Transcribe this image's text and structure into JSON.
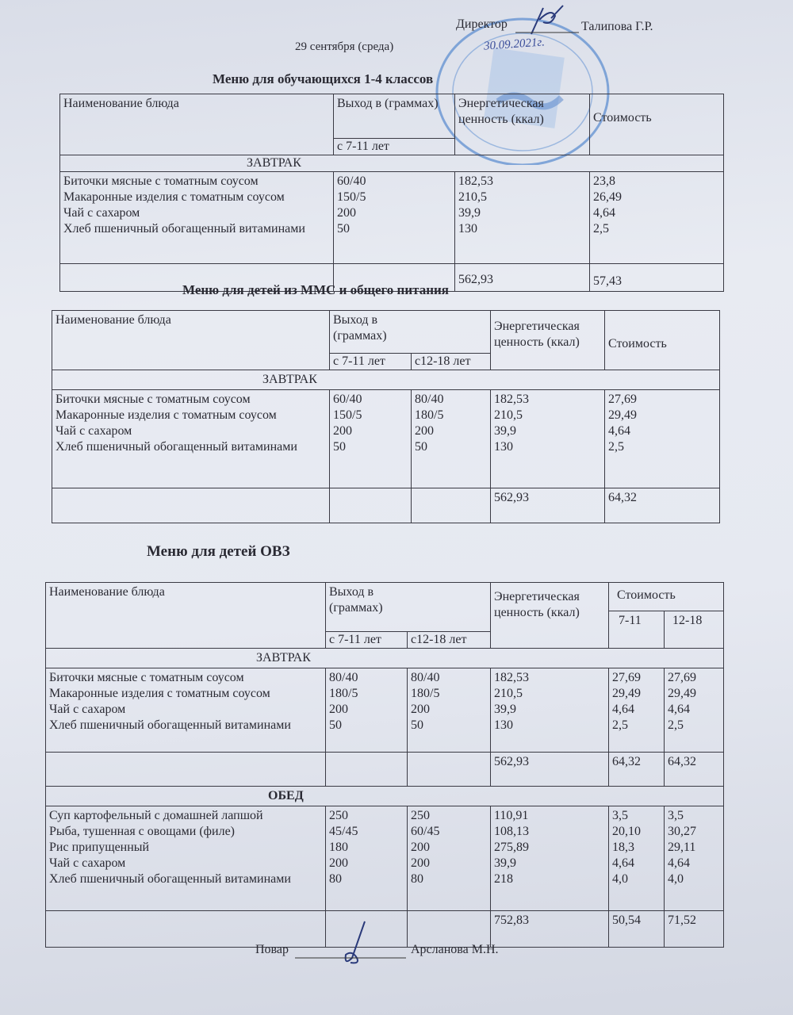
{
  "header": {
    "director_label": "Директор",
    "director_name": "Талипова Г.Р.",
    "stamp_date": "30.09.2021г.",
    "date": "29 сентября (среда)"
  },
  "table1": {
    "title": "Меню для обучающихся  1-4 классов",
    "col_name": "Наименование  блюда",
    "col_yield": "Выход в (граммах)",
    "col_yield_sub": "с 7-11 лет",
    "col_energy": "Энергетическая ценность (ккал)",
    "col_cost": "Стоимость",
    "section": "ЗАВТРАК",
    "names": [
      "Биточки мясные с томатным соусом",
      "Макаронные изделия с томатным соусом",
      "Чай с сахаром",
      "Хлеб пшеничный обогащенный витаминами"
    ],
    "yield": [
      "60/40",
      "150/5",
      "200",
      "50"
    ],
    "energy": [
      "182,53",
      "210,5",
      "39,9",
      "130"
    ],
    "cost": [
      "23,8",
      "26,49",
      "4,64",
      "2,5"
    ],
    "total_energy": "562,93",
    "total_cost": "57,43"
  },
  "table2": {
    "title": "Меню для детей из ММС и общего питания",
    "col_name": "Наименование  блюда",
    "col_yield": "Выход в (граммах)",
    "col_yield_sub1": "с 7-11 лет",
    "col_yield_sub2": "с12-18 лет",
    "col_energy": "Энергетическая ценность (ккал)",
    "col_cost": "Стоимость",
    "section": "ЗАВТРАК",
    "names": [
      "Биточки мясные с томатным соусом",
      "Макаронные изделия с томатным соусом",
      "Чай с сахаром",
      "Хлеб пшеничный обогащенный витаминами"
    ],
    "yield1": [
      "60/40",
      "150/5",
      "200",
      "50"
    ],
    "yield2": [
      "80/40",
      "180/5",
      "200",
      "50"
    ],
    "energy": [
      "182,53",
      "210,5",
      "39,9",
      "130"
    ],
    "cost": [
      "27,69",
      "29,49",
      "4,64",
      "2,5"
    ],
    "total_energy": "562,93",
    "total_cost": "64,32"
  },
  "table3": {
    "title": "Меню для детей ОВЗ",
    "col_name": "Наименование  блюда",
    "col_yield": "Выход  в (граммах)",
    "col_yield_sub1": "с 7-11 лет",
    "col_yield_sub2": "с12-18 лет",
    "col_energy": "Энергетическая ценность (ккал)",
    "col_cost": "Стоимость",
    "col_cost_sub1": "7-11",
    "col_cost_sub2": "12-18",
    "breakfast": {
      "section": "ЗАВТРАК",
      "names": [
        "Биточки мясные с томатным соусом",
        "Макаронные изделия с томатным соусом",
        "Чай с сахаром",
        "Хлеб пшеничный обогащенный витаминами"
      ],
      "yield1": [
        "80/40",
        "180/5",
        "200",
        "50"
      ],
      "yield2": [
        "80/40",
        "180/5",
        "200",
        "50"
      ],
      "energy": [
        "182,53",
        "210,5",
        "39,9",
        "130"
      ],
      "cost1": [
        "27,69",
        "29,49",
        "4,64",
        "2,5"
      ],
      "cost2": [
        "27,69",
        "29,49",
        "4,64",
        "2,5"
      ],
      "total_energy": "562,93",
      "total_cost1": "64,32",
      "total_cost2": "64,32"
    },
    "lunch": {
      "section": "ОБЕД",
      "names": [
        "Суп картофельный с домашней лапшой",
        "Рыба, тушенная с овощами (филе)",
        "Рис припущенный",
        "Чай с сахаром",
        "Хлеб пшеничный обогащенный витаминами"
      ],
      "yield1": [
        "250",
        "45/45",
        "180",
        "200",
        "80"
      ],
      "yield2": [
        "250",
        "60/45",
        "200",
        "200",
        "80"
      ],
      "energy": [
        "110,91",
        "108,13",
        "275,89",
        "39,9",
        "218"
      ],
      "cost1": [
        "3,5",
        "20,10",
        "18,3",
        "4,64",
        "4,0"
      ],
      "cost2": [
        "3,5",
        "30,27",
        "29,11",
        "4,64",
        "4,0"
      ],
      "total_energy": "752,83",
      "total_cost1": "50,54",
      "total_cost2": "71,52"
    }
  },
  "footer": {
    "cook_label": "Повар",
    "cook_name": "Арсланова М.Н."
  }
}
